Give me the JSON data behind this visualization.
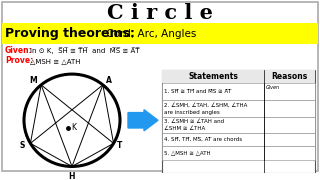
{
  "title": "C i r c l e",
  "subtitle_bold": "Proving theorems:",
  "subtitle_rest": " Cord, Arc, Angles",
  "given_label": "Given:",
  "given_text": "In ⊙ K,  S̅H̅ ≅ T̅H̅  and  M̅S̅ ≅ A̅T̅",
  "prove_label": "Prove:",
  "prove_text": "△MSH ≅ △ATH",
  "bg_color": "#ffffff",
  "yellow_bg": "#ffff00",
  "border_color": "#aaaaaa",
  "arrow_color": "#2299ee",
  "table_headers": [
    "Statements",
    "Reasons"
  ],
  "table_rows": [
    [
      "1. S̅H̅ ≅ T̅H̅ and M̅S̅ ≅ A̅T̅",
      "Given"
    ],
    [
      "2. ∠SMH, ∠TAH, ∠SHM, ∠THA\nare inscribed angles",
      ""
    ],
    [
      "3. ∠SMH ≅ ∠TAH and\n∠SHM ≅ ∠THA",
      ""
    ],
    [
      "4. SH̅, TH̅, MS̅, AT̅ are chords",
      ""
    ],
    [
      "5. △MSH ≅ △ATH",
      ""
    ]
  ]
}
